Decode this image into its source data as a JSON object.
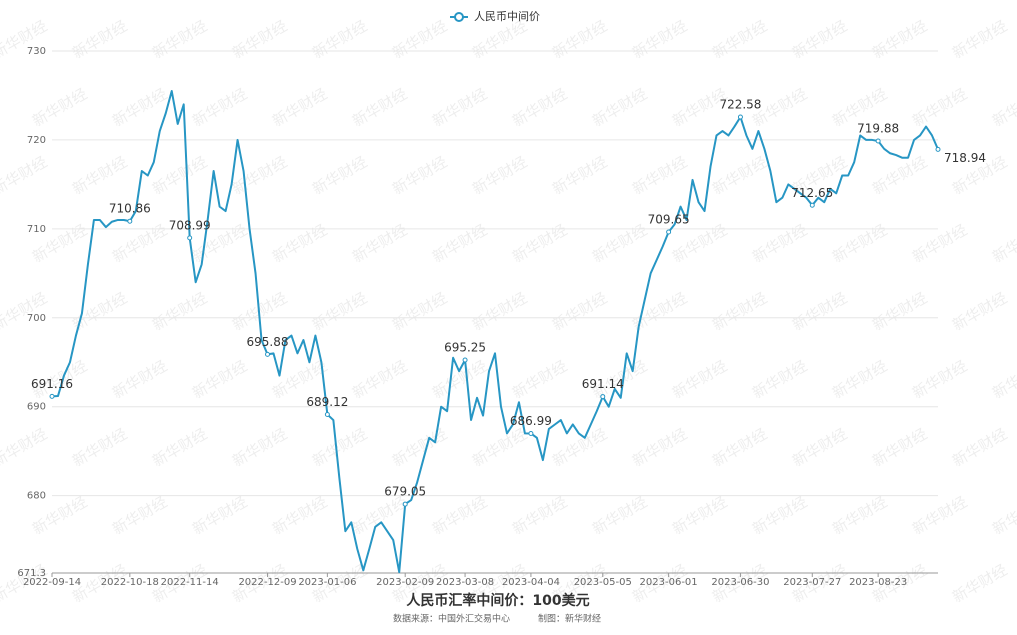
{
  "chart_data": {
    "type": "line",
    "title": "人民币汇率中间价：100美元",
    "source": "数据来源：中国外汇交易中心",
    "credit": "制图：新华财经",
    "watermark": "新华财经",
    "categories": [
      "2022-09-14",
      null,
      null,
      null,
      null,
      null,
      null,
      null,
      null,
      null,
      null,
      null,
      null,
      "2022-10-18",
      null,
      null,
      null,
      null,
      null,
      null,
      null,
      null,
      null,
      "2022-11-14",
      null,
      null,
      null,
      null,
      null,
      null,
      null,
      null,
      null,
      null,
      null,
      null,
      "2022-12-09",
      null,
      null,
      null,
      null,
      null,
      null,
      null,
      null,
      null,
      "2023-01-06",
      null,
      null,
      null,
      null,
      null,
      null,
      null,
      null,
      null,
      null,
      null,
      null,
      "2023-02-09",
      null,
      null,
      null,
      null,
      null,
      null,
      null,
      null,
      null,
      "2023-03-08",
      null,
      null,
      null,
      null,
      null,
      null,
      null,
      null,
      null,
      null,
      "2023-04-04",
      null,
      null,
      null,
      null,
      null,
      null,
      null,
      null,
      null,
      null,
      null,
      "2023-05-05",
      null,
      null,
      null,
      null,
      null,
      null,
      null,
      null,
      null,
      null,
      "2023-06-01",
      null,
      null,
      null,
      null,
      null,
      null,
      null,
      null,
      null,
      null,
      null,
      "2023-06-30",
      null,
      null,
      null,
      null,
      null,
      null,
      null,
      null,
      null,
      null,
      null,
      "2023-07-27",
      null,
      null,
      null,
      null,
      null,
      null,
      null,
      null,
      null,
      null,
      "2023-08-23",
      null,
      null,
      null,
      null,
      null,
      null,
      null,
      null,
      null,
      null
    ],
    "series": [
      {
        "name": "人民币中间价",
        "color": "#2796c4",
        "values": [
          691.16,
          691.2,
          693.5,
          695.0,
          698.0,
          700.5,
          706.0,
          711.0,
          711.0,
          710.2,
          710.8,
          711.0,
          711.0,
          710.86,
          712.0,
          716.5,
          716.0,
          717.5,
          721.0,
          723.0,
          725.5,
          721.8,
          724.0,
          708.99,
          704.0,
          706.0,
          711.0,
          716.5,
          712.5,
          712.0,
          715.0,
          720.0,
          716.5,
          710.0,
          705.0,
          697.5,
          695.88,
          696.0,
          693.5,
          697.5,
          698.0,
          696.0,
          697.5,
          695.0,
          698.0,
          695.0,
          689.12,
          688.5,
          682.0,
          676.0,
          677.0,
          674.0,
          671.6,
          674.0,
          676.5,
          677.0,
          676.0,
          675.0,
          671.4,
          679.05,
          679.5,
          681.5,
          684.0,
          686.5,
          686.0,
          690.0,
          689.5,
          695.5,
          694.0,
          695.25,
          688.5,
          691.0,
          689.0,
          694.0,
          696.0,
          690.0,
          687.0,
          688.0,
          690.5,
          687.0,
          686.99,
          686.5,
          684.0,
          687.5,
          688.0,
          688.5,
          687.0,
          688.0,
          687.0,
          686.5,
          688.0,
          689.5,
          691.14,
          690.0,
          692.0,
          691.0,
          696.0,
          694.0,
          699.0,
          702.0,
          705.0,
          706.5,
          708.0,
          709.65,
          710.5,
          712.5,
          711.0,
          715.5,
          713.0,
          712.0,
          717.0,
          720.5,
          721.0,
          720.5,
          721.5,
          722.58,
          720.5,
          719.0,
          721.0,
          719.0,
          716.5,
          713.0,
          713.5,
          715.0,
          714.5,
          714.0,
          713.5,
          712.65,
          713.5,
          713.0,
          714.5,
          714.0,
          716.0,
          716.0,
          717.5,
          720.5,
          720.0,
          720.0,
          719.88,
          719.0,
          718.5,
          718.3,
          718.0,
          718.0,
          720.0,
          720.5,
          721.5,
          720.5,
          718.94
        ]
      }
    ],
    "ylim": [
      671.3,
      730
    ],
    "yticks": [
      671.3,
      680,
      690,
      700,
      710,
      720,
      730
    ],
    "grid": true
  }
}
